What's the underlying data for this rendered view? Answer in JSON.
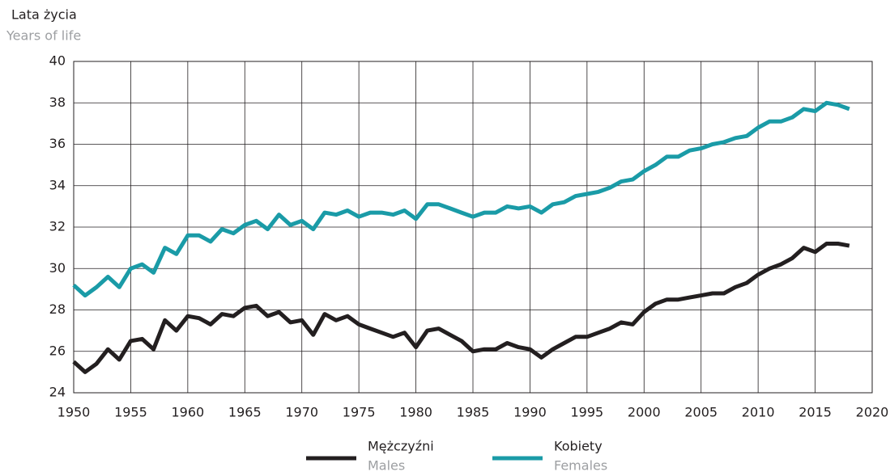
{
  "chart_data": {
    "type": "line",
    "y_label": "Lata życia",
    "y_label_sub": "Years of life",
    "x": [
      1950,
      1951,
      1952,
      1953,
      1954,
      1955,
      1956,
      1957,
      1958,
      1959,
      1960,
      1961,
      1962,
      1963,
      1964,
      1965,
      1966,
      1967,
      1968,
      1969,
      1970,
      1971,
      1972,
      1973,
      1974,
      1975,
      1976,
      1977,
      1978,
      1979,
      1980,
      1981,
      1982,
      1983,
      1984,
      1985,
      1986,
      1987,
      1988,
      1989,
      1990,
      1991,
      1992,
      1993,
      1994,
      1995,
      1996,
      1997,
      1998,
      1999,
      2000,
      2001,
      2002,
      2003,
      2004,
      2005,
      2006,
      2007,
      2008,
      2009,
      2010,
      2011,
      2012,
      2013,
      2014,
      2015,
      2016,
      2017,
      2018
    ],
    "series": [
      {
        "name": "Mężczyźni",
        "subname": "Males",
        "color": "#231f20",
        "values": [
          25.5,
          25.0,
          25.4,
          26.1,
          25.6,
          26.5,
          26.6,
          26.1,
          27.5,
          27.0,
          27.7,
          27.6,
          27.3,
          27.8,
          27.7,
          28.1,
          28.2,
          27.7,
          27.9,
          27.4,
          27.5,
          26.8,
          27.8,
          27.5,
          27.7,
          27.3,
          27.1,
          26.9,
          26.7,
          26.9,
          26.2,
          27.0,
          27.1,
          26.8,
          26.5,
          26.0,
          26.1,
          26.1,
          26.4,
          26.2,
          26.1,
          25.7,
          26.1,
          26.4,
          26.7,
          26.7,
          26.9,
          27.1,
          27.4,
          27.3,
          27.9,
          28.3,
          28.5,
          28.5,
          28.6,
          28.7,
          28.8,
          28.8,
          29.1,
          29.3,
          29.7,
          30.0,
          30.2,
          30.5,
          31.0,
          30.8,
          31.2,
          31.2,
          31.1
        ]
      },
      {
        "name": "Kobiety",
        "subname": "Females",
        "color": "#1a9ba7",
        "values": [
          29.2,
          28.7,
          29.1,
          29.6,
          29.1,
          30.0,
          30.2,
          29.8,
          31.0,
          30.7,
          31.6,
          31.6,
          31.3,
          31.9,
          31.7,
          32.1,
          32.3,
          31.9,
          32.6,
          32.1,
          32.3,
          31.9,
          32.7,
          32.6,
          32.8,
          32.5,
          32.7,
          32.7,
          32.6,
          32.8,
          32.4,
          33.1,
          33.1,
          32.9,
          32.7,
          32.5,
          32.7,
          32.7,
          33.0,
          32.9,
          33.0,
          32.7,
          33.1,
          33.2,
          33.5,
          33.6,
          33.7,
          33.9,
          34.2,
          34.3,
          34.7,
          35.0,
          35.4,
          35.4,
          35.7,
          35.8,
          36.0,
          36.1,
          36.3,
          36.4,
          36.8,
          37.1,
          37.1,
          37.3,
          37.7,
          37.6,
          38.0,
          37.9,
          37.7
        ]
      }
    ],
    "xlim": [
      1950,
      2020
    ],
    "xticks": [
      1950,
      1955,
      1960,
      1965,
      1970,
      1975,
      1980,
      1985,
      1990,
      1995,
      2000,
      2005,
      2010,
      2015,
      2020
    ],
    "ylim": [
      24,
      40
    ],
    "yticks": [
      24,
      26,
      28,
      30,
      32,
      34,
      36,
      38,
      40
    ],
    "grid": true,
    "legend": "bottom"
  }
}
